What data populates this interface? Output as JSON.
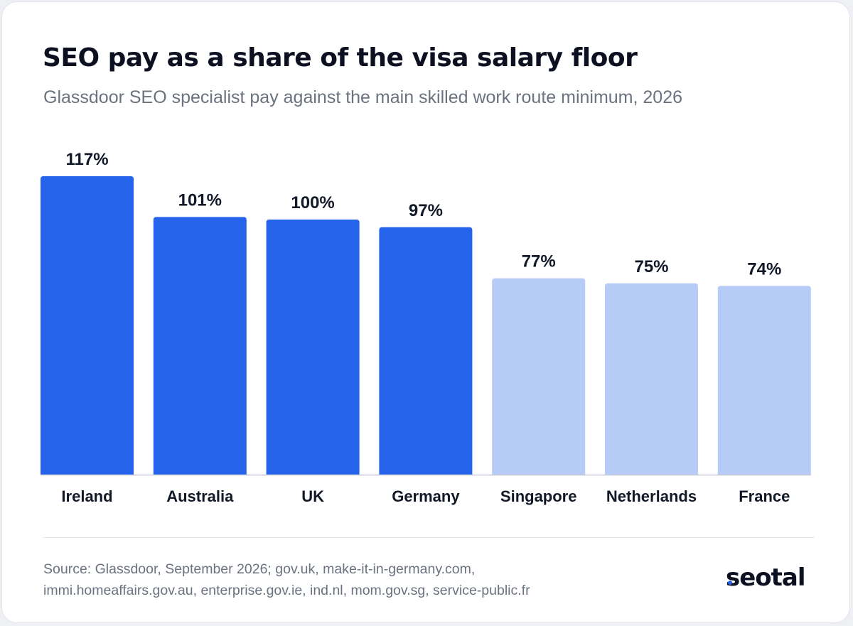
{
  "title": "SEO pay as a share of the visa salary floor",
  "subtitle": "Glassdoor SEO specialist pay against the main skilled work route minimum, 2026",
  "colors": {
    "highlight": "#2563eb",
    "muted": "#b6cbf6",
    "label": "#111827",
    "axis": "#c7ccd6"
  },
  "chart_data": {
    "type": "bar",
    "categories": [
      "Ireland",
      "Australia",
      "UK",
      "Germany",
      "Singapore",
      "Netherlands",
      "France"
    ],
    "values": [
      117,
      101,
      100,
      97,
      77,
      75,
      74
    ],
    "value_labels": [
      "117%",
      "101%",
      "100%",
      "97%",
      "77%",
      "75%",
      "74%"
    ],
    "highlighted": [
      true,
      true,
      true,
      true,
      false,
      false,
      false
    ],
    "ylim": [
      0,
      117
    ],
    "grid": false,
    "xlabel": "",
    "ylabel": ""
  },
  "footer": {
    "source_line1": "Source: Glassdoor, September 2026; gov.uk, make-it-in-germany.com,",
    "source_line2": "immi.homeaffairs.gov.au, enterprise.gov.ie, ind.nl, mom.gov.sg, service-public.fr",
    "brand": "seotal"
  }
}
